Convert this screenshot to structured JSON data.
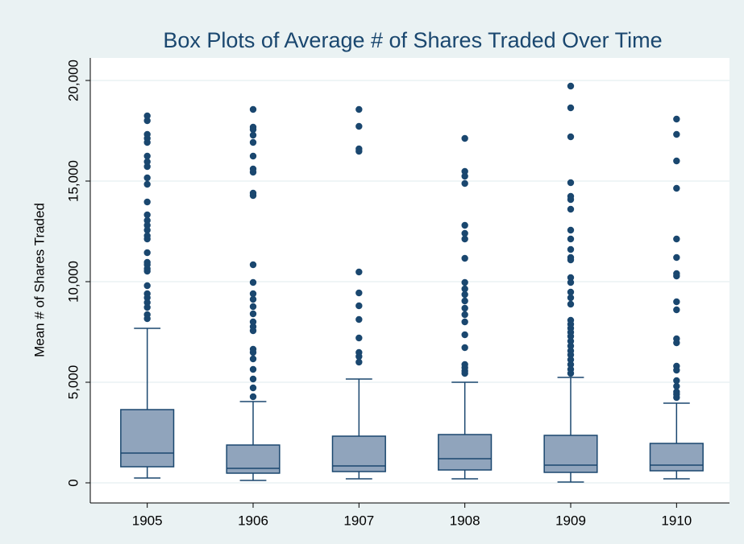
{
  "chart_data": {
    "type": "box",
    "title": "Box Plots of Average # of Shares Traded Over Time",
    "y_label": "Mean # of Shares Traded",
    "categories": [
      "1905",
      "1906",
      "1907",
      "1908",
      "1909",
      "1910"
    ],
    "box_color": "#90a4bc",
    "line_color": "#1a476f",
    "point_color": "#1a476f",
    "ylim": [
      -1000,
      21120
    ],
    "yticks": [
      0,
      {
        "value": 5000,
        "label": "5,000"
      },
      {
        "value": 10000,
        "label": "10,000"
      },
      {
        "value": 15000,
        "label": "15,000"
      },
      {
        "value": 20000,
        "label": "20,000"
      }
    ],
    "grid": true,
    "boxes": [
      {
        "min": 240,
        "q1": 800,
        "median": 1480,
        "q3": 3640,
        "max": 7680,
        "outliers": [
          18240,
          18000,
          17320,
          17120,
          16920,
          16240,
          15960,
          15720,
          15160,
          14840,
          13960,
          13320,
          13040,
          12800,
          12560,
          12280,
          12120,
          11440,
          10960,
          10840,
          10640,
          10520,
          9800,
          9400,
          9200,
          8960,
          8720,
          8360,
          8160
        ]
      },
      {
        "min": 120,
        "q1": 480,
        "median": 720,
        "q3": 1880,
        "max": 4040,
        "outliers": [
          18560,
          17680,
          17560,
          17280,
          16920,
          16240,
          15600,
          15440,
          14400,
          14280,
          10840,
          9960,
          9400,
          9120,
          8760,
          8400,
          8000,
          7760,
          7560,
          6640,
          6480,
          6160,
          5640,
          5160,
          4720,
          4280
        ]
      },
      {
        "min": 200,
        "q1": 560,
        "median": 840,
        "q3": 2320,
        "max": 5160,
        "outliers": [
          18560,
          17720,
          16600,
          16480,
          10480,
          9440,
          8800,
          8120,
          7200,
          6480,
          6280,
          6000
        ]
      },
      {
        "min": 200,
        "q1": 640,
        "median": 1200,
        "q3": 2400,
        "max": 5000,
        "outliers": [
          17120,
          15480,
          15240,
          14880,
          12800,
          12400,
          12120,
          11160,
          9960,
          9640,
          9360,
          9040,
          8680,
          8360,
          8000,
          7360,
          6720,
          5880,
          5720,
          5560,
          5440
        ]
      },
      {
        "min": 40,
        "q1": 520,
        "median": 880,
        "q3": 2360,
        "max": 5240,
        "outliers": [
          19720,
          18640,
          17200,
          14920,
          14240,
          14080,
          13600,
          12560,
          12120,
          11600,
          11200,
          11080,
          10200,
          9960,
          9480,
          9200,
          8880,
          8080,
          7880,
          7680,
          7480,
          7280,
          7040,
          6800,
          6560,
          6360,
          6120,
          5880,
          5640,
          5440
        ]
      },
      {
        "min": 200,
        "q1": 600,
        "median": 880,
        "q3": 1960,
        "max": 3960,
        "outliers": [
          18080,
          17320,
          16000,
          14640,
          12120,
          11200,
          10400,
          10280,
          9000,
          8600,
          7160,
          6960,
          5800,
          5600,
          5080,
          4800,
          4520,
          4400,
          4240
        ]
      }
    ]
  }
}
